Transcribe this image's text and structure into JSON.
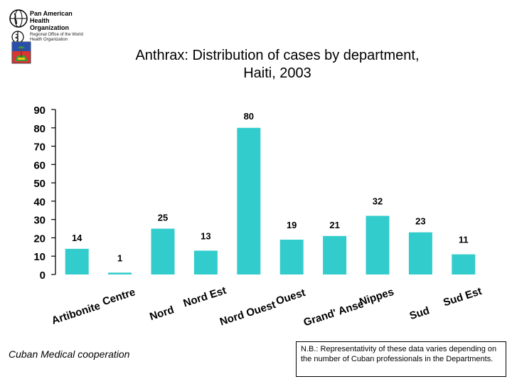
{
  "header": {
    "org_name_lines": [
      "Pan American",
      "Health",
      "Organization"
    ],
    "org_subtitle": "Regional Office of the World Health Organization",
    "title_line1": "Anthrax: Distribution of cases by department,",
    "title_line2": "Haiti, 2003"
  },
  "chart_data": {
    "type": "bar",
    "title": "Anthrax: Distribution of cases by department, Haiti, 2003",
    "categories": [
      "Artibonite",
      "Centre",
      "Nord",
      "Nord Est",
      "Nord Ouest",
      "Ouest",
      "Grand' Anse",
      "Nippes",
      "Sud",
      "Sud Est"
    ],
    "values": [
      14,
      1,
      25,
      13,
      80,
      19,
      21,
      32,
      23,
      11
    ],
    "ylim": [
      0,
      90
    ],
    "yticks": [
      0,
      10,
      20,
      30,
      40,
      50,
      60,
      70,
      80,
      90
    ],
    "xlabel": "",
    "ylabel": "",
    "grid": false,
    "bar_color": "#33CCCC"
  },
  "footer": {
    "left_text": "Cuban Medical cooperation",
    "note": "N.B.: Representativity of these data varies depending on the number of Cuban professionals in the Departments."
  }
}
